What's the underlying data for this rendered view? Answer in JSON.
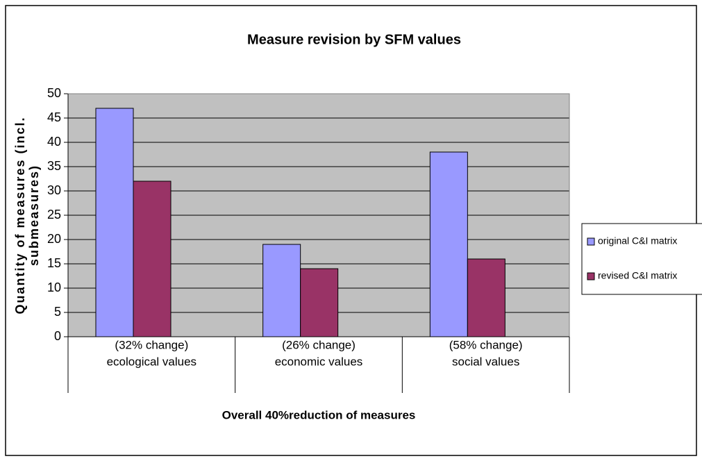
{
  "chart_data": {
    "type": "bar",
    "title": "Measure revision by SFM values",
    "xlabel": "Overall 40%reduction of measures",
    "ylabel": [
      "Quantity of measures (incl.",
      "submeasures)"
    ],
    "categories": [
      "ecological values",
      "economic values",
      "social values"
    ],
    "category_notes": [
      "(32% change)",
      "(26% change)",
      "(58% change)"
    ],
    "series": [
      {
        "name": "original C&I matrix",
        "color": "#9999ff",
        "values": [
          47,
          19,
          38
        ]
      },
      {
        "name": "revised C&I matrix",
        "color": "#993366",
        "values": [
          32,
          14,
          16
        ]
      }
    ],
    "ylim": [
      0,
      50
    ],
    "yticks": [
      0,
      5,
      10,
      15,
      20,
      25,
      30,
      35,
      40,
      45,
      50
    ],
    "grid": true,
    "legend": "right"
  }
}
